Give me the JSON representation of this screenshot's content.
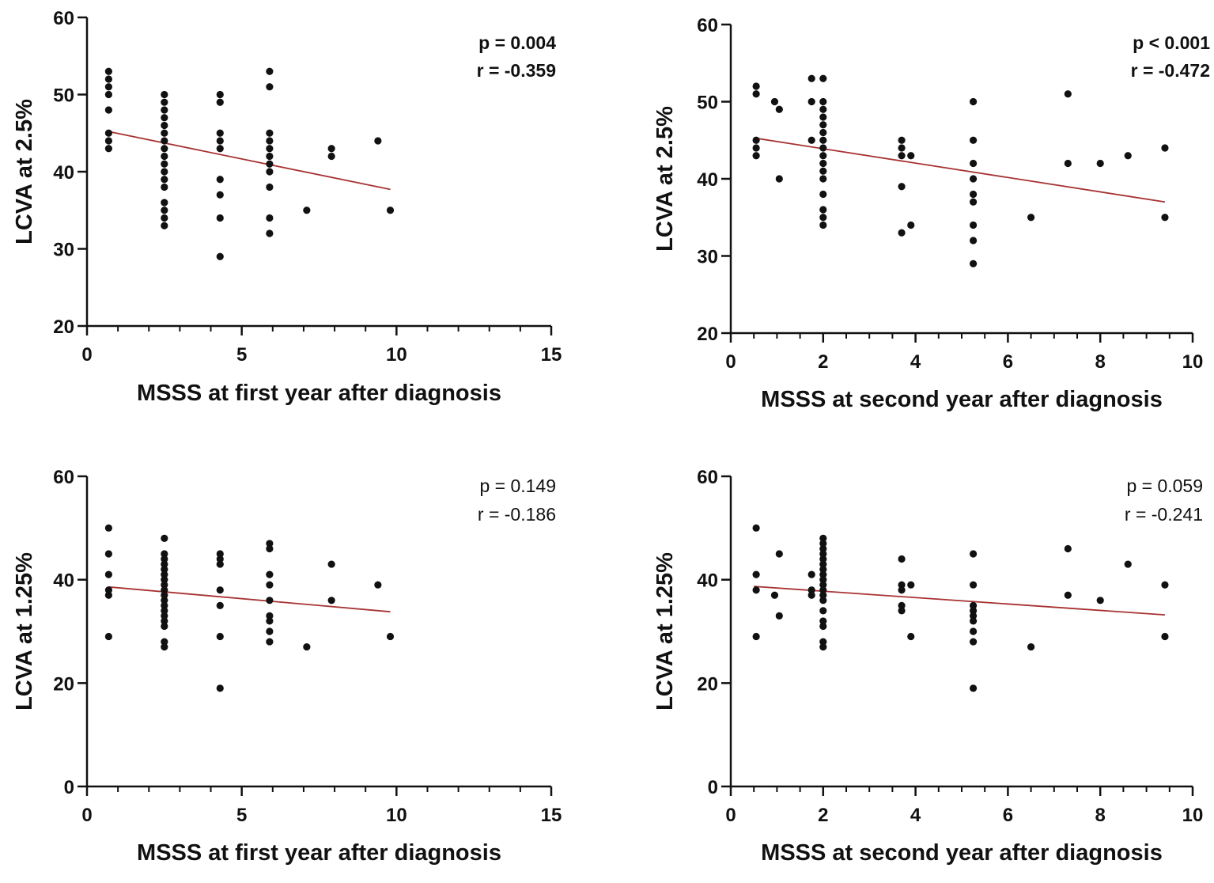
{
  "colors": {
    "axis": "#111111",
    "point": "#111111",
    "fit_line": "#a83232",
    "background": "#ffffff"
  },
  "chart_data": [
    {
      "type": "scatter",
      "id": "top-left",
      "xlabel": "MSSS at first year after diagnosis",
      "ylabel": "LCVA at 2.5%",
      "xlim": [
        0,
        15
      ],
      "ylim": [
        20,
        60
      ],
      "xticks": [
        0,
        5,
        10,
        15
      ],
      "xminor_step": 1,
      "yticks": [
        20,
        30,
        40,
        50,
        60
      ],
      "stats": {
        "p": "p = 0.004",
        "r": "r = -0.359",
        "bold": true
      },
      "fit": {
        "x": [
          0.7,
          9.8
        ],
        "y": [
          45.2,
          37.7
        ]
      },
      "points": [
        [
          0.7,
          53
        ],
        [
          0.7,
          52
        ],
        [
          0.7,
          51
        ],
        [
          0.7,
          50
        ],
        [
          0.7,
          48
        ],
        [
          0.7,
          45
        ],
        [
          0.7,
          44
        ],
        [
          0.7,
          43
        ],
        [
          2.5,
          50
        ],
        [
          2.5,
          49
        ],
        [
          2.5,
          48
        ],
        [
          2.5,
          47
        ],
        [
          2.5,
          46
        ],
        [
          2.5,
          45
        ],
        [
          2.5,
          44
        ],
        [
          2.5,
          43
        ],
        [
          2.5,
          42
        ],
        [
          2.5,
          41
        ],
        [
          2.5,
          40
        ],
        [
          2.5,
          39
        ],
        [
          2.5,
          38
        ],
        [
          2.5,
          36
        ],
        [
          2.5,
          35
        ],
        [
          2.5,
          34
        ],
        [
          2.5,
          33
        ],
        [
          4.3,
          50
        ],
        [
          4.3,
          49
        ],
        [
          4.3,
          45
        ],
        [
          4.3,
          44
        ],
        [
          4.3,
          43
        ],
        [
          4.3,
          39
        ],
        [
          4.3,
          37
        ],
        [
          4.3,
          34
        ],
        [
          4.3,
          29
        ],
        [
          5.9,
          53
        ],
        [
          5.9,
          51
        ],
        [
          5.9,
          45
        ],
        [
          5.9,
          44
        ],
        [
          5.9,
          43
        ],
        [
          5.9,
          42
        ],
        [
          5.9,
          41
        ],
        [
          5.9,
          40
        ],
        [
          5.9,
          38
        ],
        [
          5.9,
          34
        ],
        [
          5.9,
          32
        ],
        [
          7.1,
          35
        ],
        [
          7.9,
          43
        ],
        [
          7.9,
          42
        ],
        [
          9.4,
          44
        ],
        [
          9.8,
          35
        ]
      ]
    },
    {
      "type": "scatter",
      "id": "top-right",
      "xlabel": "MSSS at second year after diagnosis",
      "ylabel": "LCVA  at 2.5%",
      "xlim": [
        0,
        10
      ],
      "ylim": [
        20,
        60
      ],
      "xticks": [
        0,
        2,
        4,
        6,
        8,
        10
      ],
      "xminor_step": 0.5,
      "yticks": [
        20,
        30,
        40,
        50,
        60
      ],
      "stats": {
        "p": "p < 0.001",
        "r": "r = -0.472",
        "bold": true
      },
      "fit": {
        "x": [
          0.5,
          9.4
        ],
        "y": [
          45.3,
          37.0
        ]
      },
      "points": [
        [
          0.55,
          52
        ],
        [
          0.55,
          51
        ],
        [
          0.55,
          45
        ],
        [
          0.55,
          44
        ],
        [
          0.55,
          43
        ],
        [
          0.95,
          50
        ],
        [
          1.05,
          49
        ],
        [
          1.05,
          40
        ],
        [
          1.75,
          53
        ],
        [
          1.75,
          50
        ],
        [
          1.75,
          45
        ],
        [
          2.0,
          53
        ],
        [
          2.0,
          50
        ],
        [
          2.0,
          49
        ],
        [
          2.0,
          48
        ],
        [
          2.0,
          47
        ],
        [
          2.0,
          46
        ],
        [
          2.0,
          45
        ],
        [
          2.0,
          44
        ],
        [
          2.0,
          43
        ],
        [
          2.0,
          42
        ],
        [
          2.0,
          41
        ],
        [
          2.0,
          40
        ],
        [
          2.0,
          38
        ],
        [
          2.0,
          36
        ],
        [
          2.0,
          35
        ],
        [
          2.0,
          34
        ],
        [
          3.7,
          45
        ],
        [
          3.7,
          44
        ],
        [
          3.7,
          43
        ],
        [
          3.7,
          39
        ],
        [
          3.7,
          33
        ],
        [
          3.9,
          43
        ],
        [
          3.9,
          34
        ],
        [
          5.25,
          50
        ],
        [
          5.25,
          45
        ],
        [
          5.25,
          42
        ],
        [
          5.25,
          40
        ],
        [
          5.25,
          38
        ],
        [
          5.25,
          37
        ],
        [
          5.25,
          34
        ],
        [
          5.25,
          32
        ],
        [
          5.25,
          29
        ],
        [
          6.5,
          35
        ],
        [
          7.3,
          51
        ],
        [
          7.3,
          42
        ],
        [
          8.0,
          42
        ],
        [
          8.6,
          43
        ],
        [
          9.4,
          44
        ],
        [
          9.4,
          35
        ]
      ]
    },
    {
      "type": "scatter",
      "id": "bottom-left",
      "xlabel": "MSSS at first year after diagnosis",
      "ylabel": "LCVA at 1.25%",
      "xlim": [
        0,
        15
      ],
      "ylim": [
        0,
        60
      ],
      "xticks": [
        0,
        5,
        10,
        15
      ],
      "xminor_step": 1,
      "yticks": [
        0,
        20,
        40,
        60
      ],
      "stats": {
        "p": "p = 0.149",
        "r": "r = -0.186",
        "bold": false
      },
      "fit": {
        "x": [
          0.7,
          9.8
        ],
        "y": [
          38.6,
          33.8
        ]
      },
      "points": [
        [
          0.7,
          50
        ],
        [
          0.7,
          45
        ],
        [
          0.7,
          41
        ],
        [
          0.7,
          38
        ],
        [
          0.7,
          37
        ],
        [
          0.7,
          29
        ],
        [
          2.5,
          48
        ],
        [
          2.5,
          45
        ],
        [
          2.5,
          44
        ],
        [
          2.5,
          43
        ],
        [
          2.5,
          42
        ],
        [
          2.5,
          41
        ],
        [
          2.5,
          40
        ],
        [
          2.5,
          39
        ],
        [
          2.5,
          38
        ],
        [
          2.5,
          37
        ],
        [
          2.5,
          36
        ],
        [
          2.5,
          35
        ],
        [
          2.5,
          34
        ],
        [
          2.5,
          33
        ],
        [
          2.5,
          32
        ],
        [
          2.5,
          31
        ],
        [
          2.5,
          28
        ],
        [
          2.5,
          27
        ],
        [
          4.3,
          45
        ],
        [
          4.3,
          44
        ],
        [
          4.3,
          43
        ],
        [
          4.3,
          38
        ],
        [
          4.3,
          35
        ],
        [
          4.3,
          29
        ],
        [
          4.3,
          19
        ],
        [
          5.9,
          47
        ],
        [
          5.9,
          46
        ],
        [
          5.9,
          41
        ],
        [
          5.9,
          39
        ],
        [
          5.9,
          36
        ],
        [
          5.9,
          33
        ],
        [
          5.9,
          32
        ],
        [
          5.9,
          30
        ],
        [
          5.9,
          28
        ],
        [
          7.1,
          27
        ],
        [
          7.9,
          43
        ],
        [
          7.9,
          36
        ],
        [
          9.4,
          39
        ],
        [
          9.8,
          29
        ]
      ]
    },
    {
      "type": "scatter",
      "id": "bottom-right",
      "xlabel": "MSSS at second year after diagnosis",
      "ylabel": "LCVA at 1.25%",
      "xlim": [
        0,
        10
      ],
      "ylim": [
        0,
        60
      ],
      "xticks": [
        0,
        2,
        4,
        6,
        8,
        10
      ],
      "xminor_step": 0.5,
      "yticks": [
        0,
        20,
        40,
        60
      ],
      "stats": {
        "p": "p = 0.059",
        "r": "r = -0.241",
        "bold": false
      },
      "fit": {
        "x": [
          0.5,
          9.4
        ],
        "y": [
          38.7,
          33.2
        ]
      },
      "points": [
        [
          0.55,
          50
        ],
        [
          0.55,
          41
        ],
        [
          0.55,
          38
        ],
        [
          0.55,
          29
        ],
        [
          0.95,
          37
        ],
        [
          1.05,
          45
        ],
        [
          1.05,
          33
        ],
        [
          1.75,
          41
        ],
        [
          1.75,
          38
        ],
        [
          1.75,
          37
        ],
        [
          2.0,
          48
        ],
        [
          2.0,
          47
        ],
        [
          2.0,
          46
        ],
        [
          2.0,
          45
        ],
        [
          2.0,
          44
        ],
        [
          2.0,
          43
        ],
        [
          2.0,
          42
        ],
        [
          2.0,
          41
        ],
        [
          2.0,
          40
        ],
        [
          2.0,
          39
        ],
        [
          2.0,
          38
        ],
        [
          2.0,
          37
        ],
        [
          2.0,
          36
        ],
        [
          2.0,
          34
        ],
        [
          2.0,
          32
        ],
        [
          2.0,
          31
        ],
        [
          2.0,
          28
        ],
        [
          2.0,
          27
        ],
        [
          3.7,
          44
        ],
        [
          3.7,
          39
        ],
        [
          3.7,
          38
        ],
        [
          3.7,
          35
        ],
        [
          3.7,
          34
        ],
        [
          3.9,
          39
        ],
        [
          3.9,
          29
        ],
        [
          5.25,
          45
        ],
        [
          5.25,
          39
        ],
        [
          5.25,
          35
        ],
        [
          5.25,
          34
        ],
        [
          5.25,
          33
        ],
        [
          5.25,
          32
        ],
        [
          5.25,
          30
        ],
        [
          5.25,
          28
        ],
        [
          5.25,
          19
        ],
        [
          6.5,
          27
        ],
        [
          7.3,
          46
        ],
        [
          7.3,
          37
        ],
        [
          8.0,
          36
        ],
        [
          8.6,
          43
        ],
        [
          9.4,
          39
        ],
        [
          9.4,
          29
        ]
      ]
    }
  ]
}
